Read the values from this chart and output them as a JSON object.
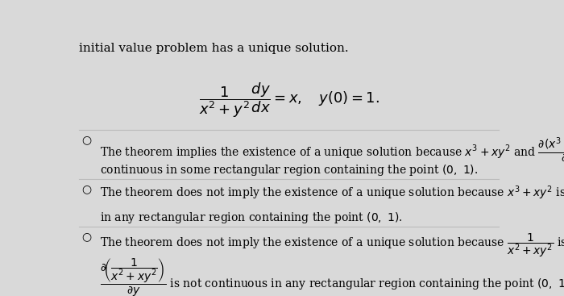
{
  "bg_color": "#d9d9d9",
  "text_color": "#000000",
  "title_text": "initial value problem has a unique solution.",
  "fontsize_title": 11,
  "fontsize_eq": 13,
  "fontsize_option": 10
}
